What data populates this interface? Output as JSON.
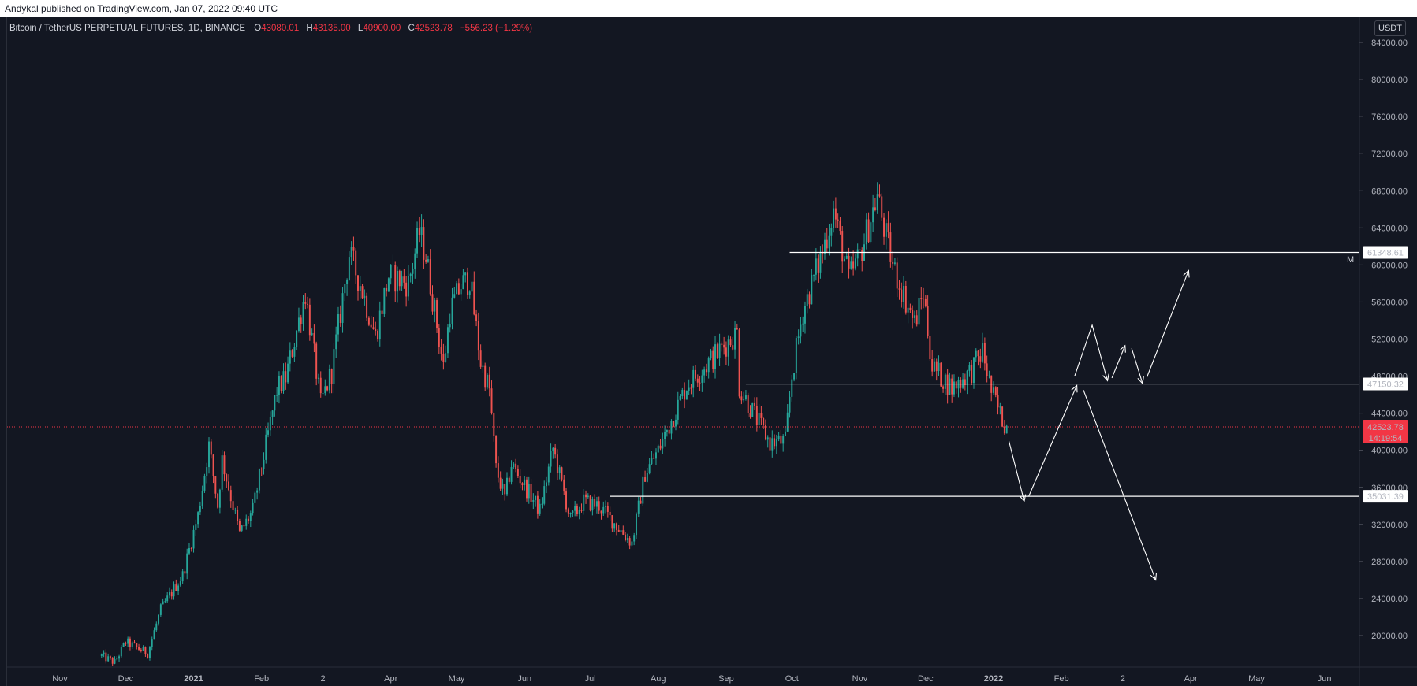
{
  "header": {
    "published": "Andykal published on TradingView.com, Jan 07, 2022 09:40 UTC"
  },
  "legend": {
    "symbol": "Bitcoin / TetherUS PERPETUAL FUTURES, 1D, BINANCE",
    "open_key": "O",
    "open": "43080.01",
    "high_key": "H",
    "high": "43135.00",
    "low_key": "L",
    "low": "40900.00",
    "close_key": "C",
    "close": "42523.78",
    "change": "−556.23 (−1.29%)"
  },
  "price_axis": {
    "unit": "USDT",
    "marker_label": "M"
  },
  "colors": {
    "background": "#131722",
    "up": "#26a69a",
    "down": "#ef5350",
    "line": "#ffffff",
    "price_label": "#f23645"
  },
  "chart_data": {
    "type": "candlestick",
    "title": "Bitcoin / TetherUS PERPETUAL FUTURES, 1D, BINANCE",
    "ylim": [
      16500,
      86500
    ],
    "y_ticks": [
      "84000.00",
      "80000.00",
      "76000.00",
      "72000.00",
      "68000.00",
      "64000.00",
      "60000.00",
      "56000.00",
      "52000.00",
      "48000.00",
      "44000.00",
      "40000.00",
      "36000.00",
      "32000.00",
      "28000.00",
      "24000.00",
      "20000.00"
    ],
    "x_ticks": [
      {
        "label": "Nov",
        "date": "2020-11-01",
        "bold": false
      },
      {
        "label": "Dec",
        "date": "2020-12-01",
        "bold": false
      },
      {
        "label": "2021",
        "date": "2021-01-01",
        "bold": true
      },
      {
        "label": "Feb",
        "date": "2021-02-01",
        "bold": false
      },
      {
        "label": "2",
        "date": "2021-03-01",
        "bold": false
      },
      {
        "label": "Apr",
        "date": "2021-04-01",
        "bold": false
      },
      {
        "label": "May",
        "date": "2021-05-01",
        "bold": false
      },
      {
        "label": "Jun",
        "date": "2021-06-01",
        "bold": false
      },
      {
        "label": "Jul",
        "date": "2021-07-01",
        "bold": false
      },
      {
        "label": "Aug",
        "date": "2021-08-01",
        "bold": false
      },
      {
        "label": "Sep",
        "date": "2021-09-01",
        "bold": false
      },
      {
        "label": "Oct",
        "date": "2021-10-01",
        "bold": false
      },
      {
        "label": "Nov",
        "date": "2021-11-01",
        "bold": false
      },
      {
        "label": "Dec",
        "date": "2021-12-01",
        "bold": false
      },
      {
        "label": "2022",
        "date": "2022-01-01",
        "bold": true
      },
      {
        "label": "Feb",
        "date": "2022-02-01",
        "bold": false
      },
      {
        "label": "2",
        "date": "2022-03-01",
        "bold": false
      },
      {
        "label": "Apr",
        "date": "2022-04-01",
        "bold": false
      },
      {
        "label": "May",
        "date": "2022-05-01",
        "bold": false
      },
      {
        "label": "Jun",
        "date": "2022-06-01",
        "bold": false
      }
    ],
    "close_path": [
      [
        "2020-11-20",
        17800
      ],
      [
        "2020-11-26",
        17100
      ],
      [
        "2020-12-01",
        19300
      ],
      [
        "2020-12-11",
        18100
      ],
      [
        "2020-12-17",
        22800
      ],
      [
        "2020-12-27",
        26500
      ],
      [
        "2021-01-03",
        33000
      ],
      [
        "2021-01-08",
        40500
      ],
      [
        "2021-01-12",
        34000
      ],
      [
        "2021-01-14",
        39000
      ],
      [
        "2021-01-22",
        31000
      ],
      [
        "2021-01-28",
        33500
      ],
      [
        "2021-02-08",
        46500
      ],
      [
        "2021-02-12",
        47800
      ],
      [
        "2021-02-21",
        57000
      ],
      [
        "2021-02-28",
        45000
      ],
      [
        "2021-03-05",
        48500
      ],
      [
        "2021-03-13",
        61200
      ],
      [
        "2021-03-18",
        58000
      ],
      [
        "2021-03-25",
        52300
      ],
      [
        "2021-03-31",
        58800
      ],
      [
        "2021-04-09",
        58000
      ],
      [
        "2021-04-14",
        63500
      ],
      [
        "2021-04-17",
        61000
      ],
      [
        "2021-04-25",
        49000
      ],
      [
        "2021-04-28",
        55000
      ],
      [
        "2021-05-03",
        57800
      ],
      [
        "2021-05-07",
        58500
      ],
      [
        "2021-05-12",
        49500
      ],
      [
        "2021-05-16",
        46500
      ],
      [
        "2021-05-19",
        38000
      ],
      [
        "2021-05-23",
        34800
      ],
      [
        "2021-05-26",
        38500
      ],
      [
        "2021-06-08",
        33500
      ],
      [
        "2021-06-14",
        40200
      ],
      [
        "2021-06-22",
        32500
      ],
      [
        "2021-06-28",
        34500
      ],
      [
        "2021-07-05",
        34000
      ],
      [
        "2021-07-20",
        30000
      ],
      [
        "2021-07-26",
        37500
      ],
      [
        "2021-08-01",
        40000
      ],
      [
        "2021-08-14",
        47000
      ],
      [
        "2021-08-22",
        49000
      ],
      [
        "2021-09-06",
        52700
      ],
      [
        "2021-09-07",
        46800
      ],
      [
        "2021-09-21",
        40800
      ],
      [
        "2021-09-28",
        41000
      ],
      [
        "2021-10-01",
        48000
      ],
      [
        "2021-10-06",
        55000
      ],
      [
        "2021-10-15",
        61500
      ],
      [
        "2021-10-20",
        65900
      ],
      [
        "2021-10-27",
        58500
      ],
      [
        "2021-11-01",
        61000
      ],
      [
        "2021-11-09",
        67500
      ],
      [
        "2021-11-12",
        64000
      ],
      [
        "2021-11-16",
        60000
      ],
      [
        "2021-11-19",
        58000
      ],
      [
        "2021-11-26",
        53700
      ],
      [
        "2021-11-30",
        57000
      ],
      [
        "2021-12-04",
        49000
      ],
      [
        "2021-12-13",
        46700
      ],
      [
        "2021-12-22",
        48600
      ],
      [
        "2021-12-27",
        50700
      ],
      [
        "2021-12-31",
        46300
      ],
      [
        "2022-01-05",
        43300
      ],
      [
        "2022-01-07",
        42524
      ]
    ],
    "horizontal_levels": [
      {
        "price": 61348.61,
        "label": "61348.61",
        "start": "2021-09-30"
      },
      {
        "price": 47150.32,
        "label": "47150.32",
        "start": "2021-09-10"
      },
      {
        "price": 35031.39,
        "label": "35031.39",
        "start": "2021-07-10"
      }
    ],
    "current_price": {
      "label": "42523.78",
      "countdown": "14:19:54",
      "price": 42523.78
    },
    "projection_paths": [
      {
        "points": [
          [
            "2022-01-08",
            41000
          ],
          [
            "2022-01-15",
            34500
          ]
        ]
      },
      {
        "points": [
          [
            "2022-01-17",
            35000
          ],
          [
            "2022-02-08",
            47000
          ]
        ]
      },
      {
        "points": [
          [
            "2022-02-11",
            46500
          ],
          [
            "2022-03-16",
            26000
          ]
        ]
      },
      {
        "points": [
          [
            "2022-02-07",
            48000
          ],
          [
            "2022-02-15",
            53500
          ],
          [
            "2022-02-22",
            47500
          ]
        ]
      },
      {
        "points": [
          [
            "2022-02-24",
            47800
          ],
          [
            "2022-03-02",
            51300
          ]
        ]
      },
      {
        "points": [
          [
            "2022-03-05",
            51000
          ],
          [
            "2022-03-10",
            47200
          ]
        ]
      },
      {
        "points": [
          [
            "2022-03-12",
            47900
          ],
          [
            "2022-03-31",
            59400
          ]
        ]
      }
    ]
  }
}
